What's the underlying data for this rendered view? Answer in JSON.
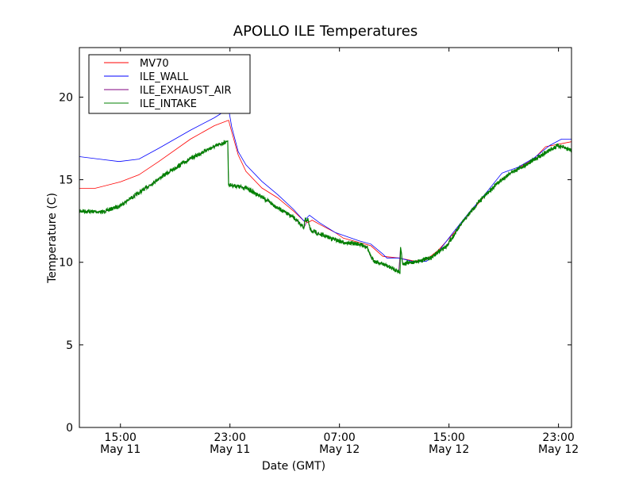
{
  "chart_data": {
    "type": "line",
    "title": "APOLLO ILE Temperatures",
    "xlabel": "Date (GMT)",
    "ylabel": "Temperature (C)",
    "x_units": "hours since May 11 00:00 GMT",
    "xlim": [
      12,
      47.95
    ],
    "ylim": [
      0,
      23
    ],
    "yticks": [
      0,
      5,
      10,
      15,
      20
    ],
    "xticks": [
      {
        "x": 15,
        "line1": "15:00",
        "line2": "May 11"
      },
      {
        "x": 23,
        "line1": "23:00",
        "line2": "May 11"
      },
      {
        "x": 31,
        "line1": "07:00",
        "line2": "May 12"
      },
      {
        "x": 39,
        "line1": "15:00",
        "line2": "May 12"
      },
      {
        "x": 47,
        "line1": "23:00",
        "line2": "May 12"
      }
    ],
    "grid": false,
    "legend_position": "top-left",
    "series": [
      {
        "name": "MV70",
        "color": "#ff0000",
        "noisy": false,
        "x": [
          12,
          13.16,
          15.01,
          16.35,
          17.8,
          20.12,
          21.86,
          22.9,
          23.13,
          23.6,
          24.17,
          25.33,
          26.49,
          27.65,
          28.41,
          28.7,
          29.0,
          29.54,
          30.7,
          31.28,
          32.44,
          33.3,
          34.17,
          35.33,
          36.49,
          37.36,
          38.23,
          39.39,
          40.55,
          41.71,
          42.87,
          44.03,
          45.19,
          46.06,
          47.95
        ],
        "y": [
          14.48,
          14.48,
          14.87,
          15.3,
          16.1,
          17.46,
          18.27,
          18.6,
          17.9,
          16.5,
          15.5,
          14.5,
          13.9,
          13.1,
          12.5,
          12.4,
          12.55,
          12.3,
          11.8,
          11.46,
          11.2,
          11.0,
          10.36,
          10.26,
          10.07,
          10.17,
          10.74,
          11.8,
          13.0,
          14.1,
          15.06,
          15.68,
          16.26,
          17.0,
          17.3
        ]
      },
      {
        "name": "ILE_WALL",
        "color": "#0000ff",
        "noisy": false,
        "x": [
          12,
          14.9,
          16.35,
          17.8,
          20.12,
          21.86,
          22.9,
          23.13,
          23.6,
          24.17,
          25.33,
          26.49,
          27.65,
          28.41,
          28.81,
          29.54,
          30.7,
          32.44,
          33.3,
          34.17,
          34.46,
          35.33,
          36.49,
          37.36,
          38.23,
          39.39,
          40.55,
          41.71,
          42.87,
          44.03,
          45.19,
          46.35,
          47.22,
          47.95
        ],
        "y": [
          16.4,
          16.1,
          16.25,
          16.9,
          18.0,
          18.75,
          19.3,
          18.2,
          16.7,
          15.9,
          14.9,
          14.1,
          13.2,
          12.5,
          12.85,
          12.4,
          11.8,
          11.3,
          11.1,
          10.5,
          10.26,
          10.26,
          10.02,
          10.07,
          10.65,
          11.9,
          13.1,
          14.2,
          15.4,
          15.75,
          16.3,
          17.07,
          17.46,
          17.46
        ]
      },
      {
        "name": "ILE_EXHAUST_AIR",
        "color": "#800080",
        "noisy": false,
        "x": [
          12,
          13.74,
          14.9,
          16.35,
          17.8,
          19.54,
          21.28,
          22.73,
          22.84,
          22.9,
          24.17,
          25.33,
          26.49,
          27.65,
          28.41,
          28.7,
          28.87,
          29.54,
          31.28,
          32.44,
          33.01,
          33.3,
          33.59,
          34.17,
          35.33,
          35.46,
          35.62,
          36.49,
          37.65,
          38.81,
          39.97,
          41.13,
          42.29,
          43.45,
          44.61,
          45.77,
          46.93,
          47.95
        ],
        "y": [
          13.1,
          13.05,
          13.4,
          14.2,
          15.06,
          16.0,
          16.8,
          17.3,
          17.35,
          14.7,
          14.5,
          13.95,
          13.3,
          12.7,
          12.1,
          12.6,
          11.95,
          11.7,
          11.2,
          11.1,
          10.95,
          10.3,
          10.05,
          9.9,
          9.45,
          10.9,
          9.9,
          10.02,
          10.26,
          10.98,
          12.4,
          13.6,
          14.6,
          15.4,
          15.9,
          16.5,
          17.07,
          16.8
        ]
      },
      {
        "name": "ILE_INTAKE",
        "color": "#008000",
        "noisy": true,
        "x": [
          12,
          13.74,
          14.9,
          16.35,
          17.8,
          19.54,
          21.28,
          22.73,
          22.84,
          22.9,
          24.17,
          25.33,
          26.49,
          27.65,
          28.41,
          28.47,
          28.7,
          28.87,
          29.54,
          31.28,
          32.44,
          33.01,
          33.3,
          33.59,
          34.17,
          35.33,
          35.42,
          35.46,
          35.62,
          36.49,
          37.65,
          38.81,
          39.97,
          41.13,
          42.29,
          43.45,
          44.61,
          45.77,
          46.93,
          47.95
        ],
        "y": [
          13.1,
          13.05,
          13.4,
          14.2,
          15.06,
          16.0,
          16.8,
          17.3,
          17.35,
          14.7,
          14.5,
          13.95,
          13.3,
          12.7,
          12.1,
          12.6,
          12.55,
          11.95,
          11.7,
          11.2,
          11.1,
          10.95,
          10.3,
          10.05,
          9.9,
          9.45,
          9.3,
          11.0,
          9.9,
          10.02,
          10.26,
          10.98,
          12.4,
          13.6,
          14.6,
          15.4,
          15.9,
          16.5,
          17.07,
          16.8
        ]
      }
    ]
  }
}
